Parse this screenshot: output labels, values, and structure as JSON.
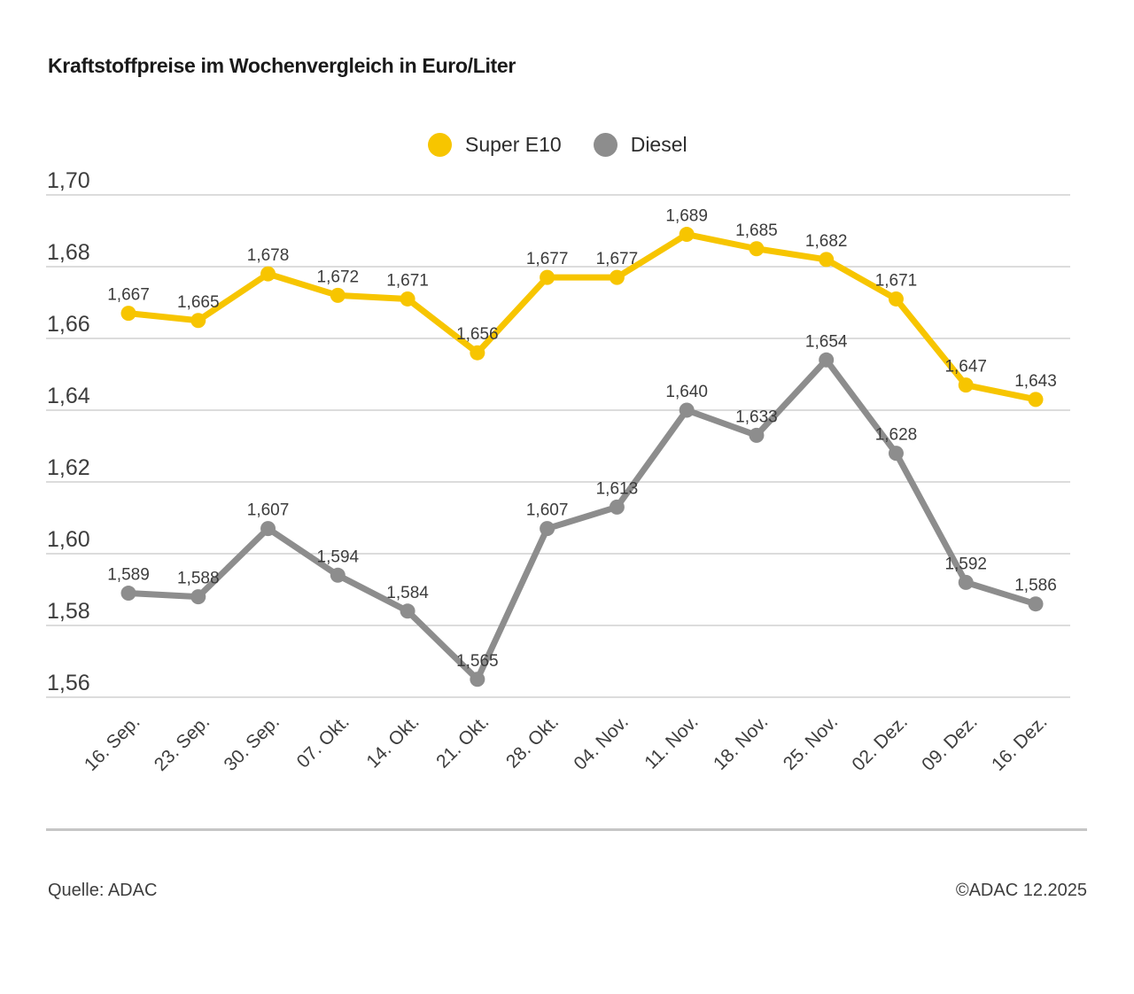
{
  "title": "Kraftstoffpreise im Wochenvergleich in Euro/Liter",
  "footer": {
    "source": "Quelle: ADAC",
    "copyright": "©ADAC 12.2025"
  },
  "colors": {
    "super_e10": "#F7C500",
    "diesel": "#8D8D8D",
    "grid": "#C8C8C8",
    "axis_text": "#3D3D3D",
    "value_text": "#3C3C3C",
    "title_text": "#1A1A1A",
    "divider": "#C6C6C6"
  },
  "chart_data": {
    "type": "line",
    "title": "Kraftstoffpreise im Wochenvergleich in Euro/Liter",
    "unit": "Euro/Liter",
    "categories": [
      "16. Sep.",
      "23. Sep.",
      "30. Sep.",
      "07. Okt.",
      "14. Okt.",
      "21. Okt.",
      "28. Okt.",
      "04. Nov.",
      "11. Nov.",
      "18. Nov.",
      "25. Nov.",
      "02. Dez.",
      "09. Dez.",
      "16. Dez."
    ],
    "series": [
      {
        "name": "Super E10",
        "color": "#F7C500",
        "values": [
          1.667,
          1.665,
          1.678,
          1.672,
          1.671,
          1.656,
          1.677,
          1.677,
          1.689,
          1.685,
          1.682,
          1.671,
          1.647,
          1.643
        ]
      },
      {
        "name": "Diesel",
        "color": "#8D8D8D",
        "values": [
          1.589,
          1.588,
          1.607,
          1.594,
          1.584,
          1.565,
          1.607,
          1.613,
          1.64,
          1.633,
          1.654,
          1.628,
          1.592,
          1.586
        ]
      }
    ],
    "ylim": [
      1.56,
      1.7
    ],
    "yticks": [
      1.56,
      1.58,
      1.6,
      1.62,
      1.64,
      1.66,
      1.68,
      1.7
    ],
    "ytick_label_format": "decimal-comma-2dp",
    "value_label_format": "decimal-comma-3dp",
    "grid": true,
    "legend_position": "top-center",
    "x_label_rotation": -45
  }
}
